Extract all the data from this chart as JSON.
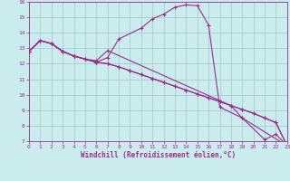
{
  "xlabel": "Windchill (Refroidissement éolien,°C)",
  "s1_x": [
    0,
    1,
    2,
    3,
    4,
    5,
    6,
    7,
    8,
    10,
    11,
    12,
    13,
    14,
    15,
    16,
    17,
    19,
    21,
    22,
    23
  ],
  "s1_y": [
    12.8,
    13.5,
    13.3,
    12.8,
    12.5,
    12.3,
    12.1,
    12.4,
    13.6,
    14.3,
    14.9,
    15.2,
    15.65,
    15.8,
    15.75,
    14.5,
    9.2,
    8.5,
    7.1,
    7.45,
    6.7
  ],
  "s2_x": [
    0,
    1,
    2,
    3,
    4,
    5,
    6,
    7,
    8,
    9,
    10,
    11,
    12,
    13,
    14,
    15,
    16,
    17,
    18,
    19,
    20,
    21,
    22,
    23
  ],
  "s2_y": [
    12.8,
    13.5,
    13.3,
    12.8,
    12.5,
    12.3,
    12.1,
    12.0,
    11.8,
    11.55,
    11.3,
    11.05,
    10.8,
    10.55,
    10.3,
    10.05,
    9.8,
    9.55,
    9.3,
    9.05,
    8.8,
    8.5,
    8.2,
    6.7
  ],
  "s3_x": [
    0,
    1,
    2,
    3,
    4,
    5,
    6,
    7,
    18,
    19,
    23
  ],
  "s3_y": [
    12.8,
    13.5,
    13.3,
    12.8,
    12.5,
    12.3,
    12.2,
    12.85,
    9.3,
    8.5,
    6.7
  ],
  "s4_x": [
    0,
    1,
    2,
    3,
    4,
    5,
    6,
    7,
    8,
    9,
    10,
    11,
    12,
    13,
    14,
    15,
    16,
    17,
    18,
    19,
    20,
    21,
    22,
    23
  ],
  "s4_y": [
    12.8,
    13.5,
    13.3,
    12.8,
    12.5,
    12.3,
    12.1,
    12.0,
    11.8,
    11.55,
    11.3,
    11.05,
    10.8,
    10.55,
    10.3,
    10.05,
    9.8,
    9.55,
    9.3,
    9.05,
    8.8,
    8.5,
    8.2,
    6.7
  ],
  "color": "#9b2d8e",
  "bg_color": "#cbecec",
  "grid_color": "#a0c8c8",
  "ylim": [
    7,
    16
  ],
  "xlim": [
    0,
    23
  ],
  "yticks": [
    7,
    8,
    9,
    10,
    11,
    12,
    13,
    14,
    15,
    16
  ],
  "xticks": [
    0,
    1,
    2,
    3,
    4,
    5,
    6,
    7,
    8,
    9,
    10,
    11,
    12,
    13,
    14,
    15,
    16,
    17,
    18,
    19,
    20,
    21,
    22,
    23
  ]
}
